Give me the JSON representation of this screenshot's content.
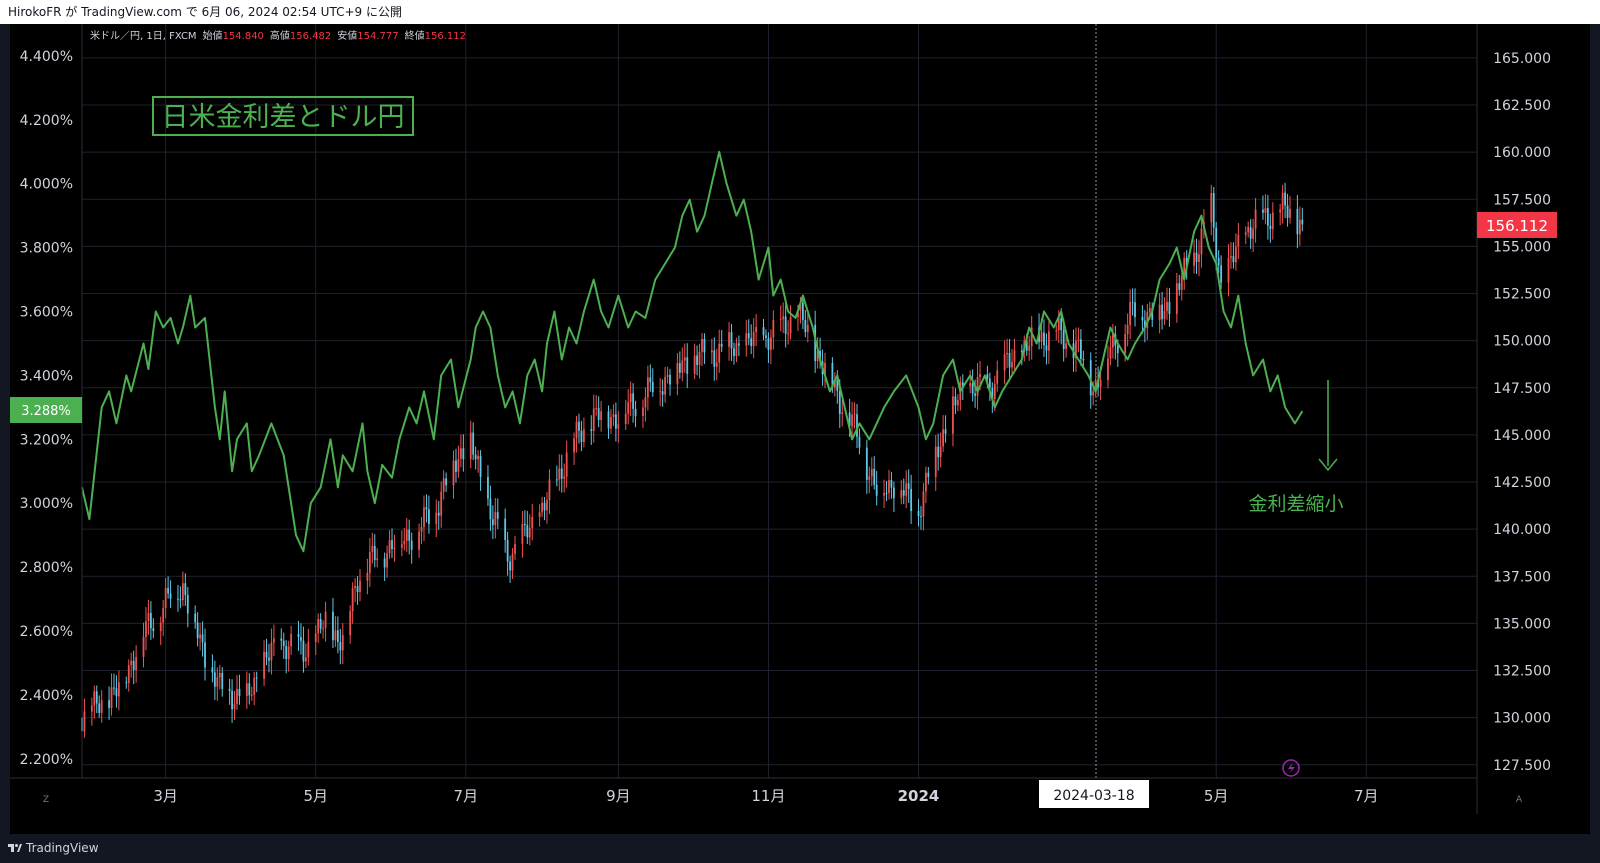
{
  "header": {
    "publish_text": "HirokoFR が TradingView.com で 6月 06, 2024 02:54 UTC+9 に公開"
  },
  "footer": {
    "brand": "TradingView"
  },
  "legend": {
    "symbol": "米ドル／円, 1日, FXCM",
    "open_label": "始値",
    "open": "154.840",
    "high_label": "高値",
    "high": "156.482",
    "low_label": "安値",
    "low": "154.777",
    "close_label": "終値",
    "close": "156.112"
  },
  "colors": {
    "spread_line": "#4caf50",
    "candle_up": "#ef5350",
    "candle_down": "#5ec8e6",
    "price_tag": "#f23645",
    "spread_tag": "#4caf50",
    "background": "#000000"
  },
  "icons": {
    "left_scale_mode": "Z",
    "right_scale_mode": "A",
    "alert_icon": "lightning-icon"
  },
  "chart_data": {
    "type": "line",
    "title": "日米金利差とドル円",
    "annotation": "金利差縮小",
    "crosshair_date": "2024-03-18",
    "x_range": [
      "2023-01-26",
      "2024-08-15"
    ],
    "x_ticks": [
      {
        "date": "2023-03-01",
        "label": "3月",
        "bold": false
      },
      {
        "date": "2023-05-01",
        "label": "5月",
        "bold": false
      },
      {
        "date": "2023-07-01",
        "label": "7月",
        "bold": false
      },
      {
        "date": "2023-09-01",
        "label": "9月",
        "bold": false
      },
      {
        "date": "2023-11-01",
        "label": "11月",
        "bold": false
      },
      {
        "date": "2024-01-01",
        "label": "2024",
        "bold": true
      },
      {
        "date": "2024-05-01",
        "label": "5月",
        "bold": false
      },
      {
        "date": "2024-07-01",
        "label": "7月",
        "bold": false
      }
    ],
    "left_axis": {
      "ylim": [
        2.14,
        4.5
      ],
      "ticks": [
        "2.200%",
        "2.400%",
        "2.600%",
        "2.800%",
        "3.000%",
        "3.200%",
        "3.400%",
        "3.600%",
        "3.800%",
        "4.000%",
        "4.200%",
        "4.400%"
      ],
      "current_label": "3.288%"
    },
    "right_axis": {
      "ylim": [
        126.8,
        166.8
      ],
      "ticks": [
        "127.500",
        "130.000",
        "132.500",
        "135.000",
        "137.500",
        "140.000",
        "142.500",
        "145.000",
        "147.500",
        "150.000",
        "152.500",
        "155.000",
        "157.500",
        "160.000",
        "162.500",
        "165.000"
      ],
      "current_label": "156.112"
    },
    "series": [
      {
        "axis": "left",
        "style": "line",
        "points": [
          [
            "2023-01-26",
            3.05
          ],
          [
            "2023-01-29",
            2.95
          ],
          [
            "2023-02-03",
            3.3
          ],
          [
            "2023-02-06",
            3.35
          ],
          [
            "2023-02-09",
            3.25
          ],
          [
            "2023-02-13",
            3.4
          ],
          [
            "2023-02-15",
            3.35
          ],
          [
            "2023-02-20",
            3.5
          ],
          [
            "2023-02-22",
            3.42
          ],
          [
            "2023-02-25",
            3.6
          ],
          [
            "2023-02-28",
            3.55
          ],
          [
            "2023-03-03",
            3.58
          ],
          [
            "2023-03-06",
            3.5
          ],
          [
            "2023-03-08",
            3.55
          ],
          [
            "2023-03-11",
            3.65
          ],
          [
            "2023-03-13",
            3.55
          ],
          [
            "2023-03-17",
            3.58
          ],
          [
            "2023-03-21",
            3.3
          ],
          [
            "2023-03-23",
            3.2
          ],
          [
            "2023-03-25",
            3.35
          ],
          [
            "2023-03-28",
            3.1
          ],
          [
            "2023-03-30",
            3.2
          ],
          [
            "2023-04-03",
            3.25
          ],
          [
            "2023-04-05",
            3.1
          ],
          [
            "2023-04-08",
            3.15
          ],
          [
            "2023-04-13",
            3.25
          ],
          [
            "2023-04-18",
            3.15
          ],
          [
            "2023-04-23",
            2.9
          ],
          [
            "2023-04-26",
            2.85
          ],
          [
            "2023-04-29",
            3.0
          ],
          [
            "2023-05-03",
            3.05
          ],
          [
            "2023-05-07",
            3.2
          ],
          [
            "2023-05-10",
            3.05
          ],
          [
            "2023-05-12",
            3.15
          ],
          [
            "2023-05-16",
            3.1
          ],
          [
            "2023-05-20",
            3.25
          ],
          [
            "2023-05-22",
            3.1
          ],
          [
            "2023-05-25",
            3.0
          ],
          [
            "2023-05-28",
            3.12
          ],
          [
            "2023-06-01",
            3.08
          ],
          [
            "2023-06-04",
            3.2
          ],
          [
            "2023-06-08",
            3.3
          ],
          [
            "2023-06-11",
            3.25
          ],
          [
            "2023-06-14",
            3.35
          ],
          [
            "2023-06-18",
            3.2
          ],
          [
            "2023-06-21",
            3.4
          ],
          [
            "2023-06-25",
            3.45
          ],
          [
            "2023-06-28",
            3.3
          ],
          [
            "2023-07-03",
            3.45
          ],
          [
            "2023-07-05",
            3.55
          ],
          [
            "2023-07-08",
            3.6
          ],
          [
            "2023-07-11",
            3.55
          ],
          [
            "2023-07-14",
            3.4
          ],
          [
            "2023-07-17",
            3.3
          ],
          [
            "2023-07-20",
            3.35
          ],
          [
            "2023-07-23",
            3.25
          ],
          [
            "2023-07-26",
            3.4
          ],
          [
            "2023-07-29",
            3.45
          ],
          [
            "2023-08-01",
            3.35
          ],
          [
            "2023-08-03",
            3.5
          ],
          [
            "2023-08-06",
            3.6
          ],
          [
            "2023-08-09",
            3.45
          ],
          [
            "2023-08-12",
            3.55
          ],
          [
            "2023-08-15",
            3.5
          ],
          [
            "2023-08-18",
            3.6
          ],
          [
            "2023-08-22",
            3.7
          ],
          [
            "2023-08-25",
            3.6
          ],
          [
            "2023-08-28",
            3.55
          ],
          [
            "2023-09-01",
            3.65
          ],
          [
            "2023-09-05",
            3.55
          ],
          [
            "2023-09-08",
            3.6
          ],
          [
            "2023-09-12",
            3.58
          ],
          [
            "2023-09-16",
            3.7
          ],
          [
            "2023-09-20",
            3.75
          ],
          [
            "2023-09-24",
            3.8
          ],
          [
            "2023-09-27",
            3.9
          ],
          [
            "2023-09-30",
            3.95
          ],
          [
            "2023-10-03",
            3.85
          ],
          [
            "2023-10-06",
            3.9
          ],
          [
            "2023-10-09",
            4.0
          ],
          [
            "2023-10-12",
            4.1
          ],
          [
            "2023-10-15",
            4.0
          ],
          [
            "2023-10-19",
            3.9
          ],
          [
            "2023-10-22",
            3.95
          ],
          [
            "2023-10-25",
            3.85
          ],
          [
            "2023-10-28",
            3.7
          ],
          [
            "2023-11-01",
            3.8
          ],
          [
            "2023-11-03",
            3.65
          ],
          [
            "2023-11-06",
            3.7
          ],
          [
            "2023-11-09",
            3.6
          ],
          [
            "2023-11-12",
            3.58
          ],
          [
            "2023-11-15",
            3.65
          ],
          [
            "2023-11-19",
            3.55
          ],
          [
            "2023-11-22",
            3.45
          ],
          [
            "2023-11-26",
            3.35
          ],
          [
            "2023-11-29",
            3.4
          ],
          [
            "2023-12-02",
            3.3
          ],
          [
            "2023-12-05",
            3.2
          ],
          [
            "2023-12-08",
            3.25
          ],
          [
            "2023-12-12",
            3.2
          ],
          [
            "2023-12-15",
            3.25
          ],
          [
            "2023-12-18",
            3.3
          ],
          [
            "2023-12-22",
            3.35
          ],
          [
            "2023-12-27",
            3.4
          ],
          [
            "2024-01-01",
            3.3
          ],
          [
            "2024-01-04",
            3.2
          ],
          [
            "2024-01-07",
            3.25
          ],
          [
            "2024-01-11",
            3.4
          ],
          [
            "2024-01-15",
            3.45
          ],
          [
            "2024-01-18",
            3.35
          ],
          [
            "2024-01-22",
            3.4
          ],
          [
            "2024-01-25",
            3.35
          ],
          [
            "2024-01-28",
            3.4
          ],
          [
            "2024-02-01",
            3.3
          ],
          [
            "2024-02-04",
            3.35
          ],
          [
            "2024-02-08",
            3.4
          ],
          [
            "2024-02-12",
            3.45
          ],
          [
            "2024-02-15",
            3.55
          ],
          [
            "2024-02-18",
            3.5
          ],
          [
            "2024-02-21",
            3.6
          ],
          [
            "2024-02-25",
            3.55
          ],
          [
            "2024-02-28",
            3.6
          ],
          [
            "2024-03-02",
            3.5
          ],
          [
            "2024-03-06",
            3.45
          ],
          [
            "2024-03-10",
            3.4
          ],
          [
            "2024-03-13",
            3.35
          ],
          [
            "2024-03-16",
            3.45
          ],
          [
            "2024-03-19",
            3.55
          ],
          [
            "2024-03-22",
            3.5
          ],
          [
            "2024-03-26",
            3.45
          ],
          [
            "2024-03-29",
            3.5
          ],
          [
            "2024-04-02",
            3.55
          ],
          [
            "2024-04-05",
            3.6
          ],
          [
            "2024-04-08",
            3.7
          ],
          [
            "2024-04-12",
            3.75
          ],
          [
            "2024-04-15",
            3.8
          ],
          [
            "2024-04-18",
            3.7
          ],
          [
            "2024-04-22",
            3.85
          ],
          [
            "2024-04-25",
            3.9
          ],
          [
            "2024-04-28",
            3.8
          ],
          [
            "2024-05-01",
            3.75
          ],
          [
            "2024-05-04",
            3.6
          ],
          [
            "2024-05-07",
            3.55
          ],
          [
            "2024-05-10",
            3.65
          ],
          [
            "2024-05-13",
            3.5
          ],
          [
            "2024-05-16",
            3.4
          ],
          [
            "2024-05-20",
            3.45
          ],
          [
            "2024-05-23",
            3.35
          ],
          [
            "2024-05-26",
            3.4
          ],
          [
            "2024-05-29",
            3.3
          ],
          [
            "2024-06-02",
            3.25
          ],
          [
            "2024-06-05",
            3.288
          ]
        ]
      },
      {
        "axis": "right",
        "style": "candles",
        "anchors": [
          [
            "2023-01-26",
            130.0
          ],
          [
            "2023-02-10",
            131.5
          ],
          [
            "2023-02-20",
            134.5
          ],
          [
            "2023-03-03",
            136.5
          ],
          [
            "2023-03-08",
            137.0
          ],
          [
            "2023-03-15",
            134.0
          ],
          [
            "2023-03-23",
            131.5
          ],
          [
            "2023-04-03",
            131.0
          ],
          [
            "2023-04-10",
            133.0
          ],
          [
            "2023-04-18",
            134.0
          ],
          [
            "2023-04-26",
            133.5
          ],
          [
            "2023-05-05",
            135.0
          ],
          [
            "2023-05-12",
            134.0
          ],
          [
            "2023-05-18",
            137.5
          ],
          [
            "2023-05-25",
            138.5
          ],
          [
            "2023-06-05",
            139.5
          ],
          [
            "2023-06-12",
            140.0
          ],
          [
            "2023-06-20",
            141.5
          ],
          [
            "2023-06-28",
            144.0
          ],
          [
            "2023-07-03",
            144.5
          ],
          [
            "2023-07-11",
            141.0
          ],
          [
            "2023-07-18",
            138.5
          ],
          [
            "2023-07-27",
            140.0
          ],
          [
            "2023-08-05",
            142.0
          ],
          [
            "2023-08-13",
            144.5
          ],
          [
            "2023-08-22",
            146.0
          ],
          [
            "2023-09-01",
            146.0
          ],
          [
            "2023-09-15",
            147.5
          ],
          [
            "2023-09-30",
            149.0
          ],
          [
            "2023-10-13",
            149.5
          ],
          [
            "2023-10-27",
            150.0
          ],
          [
            "2023-11-05",
            150.5
          ],
          [
            "2023-11-13",
            151.5
          ],
          [
            "2023-11-20",
            149.5
          ],
          [
            "2023-11-28",
            147.5
          ],
          [
            "2023-12-07",
            145.0
          ],
          [
            "2023-12-15",
            142.0
          ],
          [
            "2023-12-22",
            142.5
          ],
          [
            "2024-01-01",
            141.0
          ],
          [
            "2024-01-09",
            144.5
          ],
          [
            "2024-01-19",
            147.5
          ],
          [
            "2024-01-29",
            147.5
          ],
          [
            "2024-02-08",
            149.0
          ],
          [
            "2024-02-17",
            150.0
          ],
          [
            "2024-02-26",
            150.5
          ],
          [
            "2024-03-06",
            149.5
          ],
          [
            "2024-03-12",
            147.5
          ],
          [
            "2024-03-19",
            149.5
          ],
          [
            "2024-03-28",
            151.5
          ],
          [
            "2024-04-10",
            151.5
          ],
          [
            "2024-04-22",
            154.5
          ],
          [
            "2024-04-29",
            157.0
          ],
          [
            "2024-05-03",
            153.0
          ],
          [
            "2024-05-14",
            156.0
          ],
          [
            "2024-05-28",
            157.0
          ],
          [
            "2024-06-05",
            156.112
          ]
        ]
      }
    ]
  }
}
